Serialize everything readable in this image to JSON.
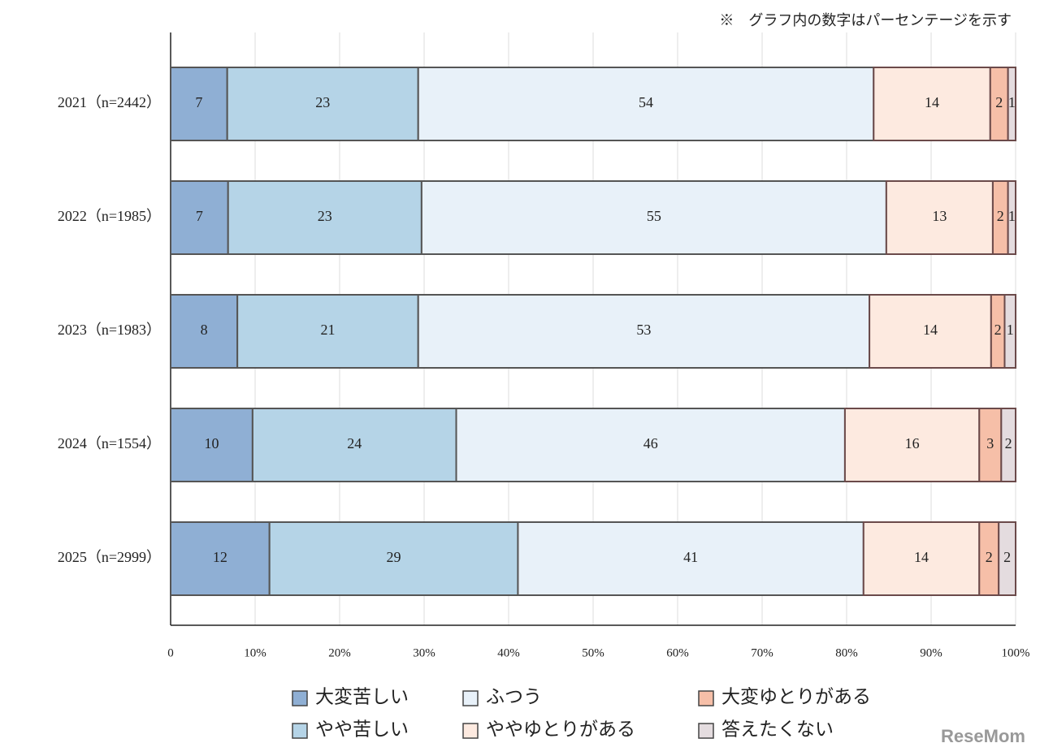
{
  "chart_data": {
    "type": "stacked-bar-horizontal",
    "annotation": "※　グラフ内の数字はパーセンテージを示す",
    "watermark": "ReseMom",
    "categories": [
      "2021（n=2442）",
      "2022（n=1985）",
      "2023（n=1983）",
      "2024（n=1554）",
      "2025（n=2999）"
    ],
    "series": [
      {
        "name": "大変苦しい",
        "color": "#8fafd4",
        "values": [
          6.7,
          6.8,
          7.9,
          9.7,
          11.7
        ],
        "value_labels": [
          "7",
          "7",
          "8",
          "10",
          "12"
        ]
      },
      {
        "name": "やや苦しい",
        "color": "#b5d4e7",
        "values": [
          22.6,
          22.9,
          21.4,
          24.1,
          29.4
        ],
        "value_labels": [
          "23",
          "23",
          "21",
          "24",
          "29"
        ]
      },
      {
        "name": "ふつう",
        "color": "#e8f1f9",
        "values": [
          53.9,
          55.0,
          53.4,
          46.0,
          40.9
        ],
        "value_labels": [
          "54",
          "55",
          "53",
          "46",
          "41"
        ]
      },
      {
        "name": "ややゆとりがある",
        "color": "#fdeae0",
        "values": [
          13.8,
          12.6,
          14.4,
          15.9,
          13.7
        ],
        "value_labels": [
          "14",
          "13",
          "14",
          "16",
          "14"
        ]
      },
      {
        "name": "大変ゆとりがある",
        "color": "#f6bfa8",
        "values": [
          2.1,
          1.8,
          1.6,
          2.6,
          2.3
        ],
        "value_labels": [
          "2",
          "2",
          "2",
          "3",
          "2"
        ]
      },
      {
        "name": "答えたくない",
        "color": "#e4dcdf",
        "values": [
          0.9,
          0.9,
          1.3,
          1.7,
          2.0
        ],
        "value_labels": [
          "1",
          "1",
          "1",
          "2",
          "2"
        ]
      }
    ],
    "xlim": [
      0,
      100
    ],
    "xticks": [
      0,
      {
        "value": 10,
        "label": "10%"
      },
      {
        "value": 20,
        "label": "20%"
      },
      {
        "value": 30,
        "label": "30%"
      },
      {
        "value": 40,
        "label": "40%"
      },
      {
        "value": 50,
        "label": "50%"
      },
      {
        "value": 60,
        "label": "60%"
      },
      {
        "value": 70,
        "label": "70%"
      },
      {
        "value": 80,
        "label": "80%"
      },
      {
        "value": 90,
        "label": "90%"
      },
      {
        "value": 100,
        "label": "100%"
      }
    ],
    "grid": true
  }
}
